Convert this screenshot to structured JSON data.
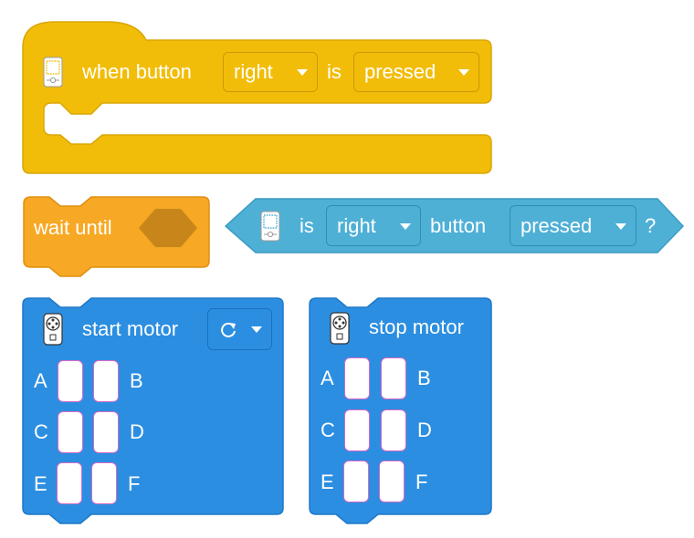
{
  "when_block": {
    "label": "when button",
    "button": "right",
    "is": "is",
    "state": "pressed",
    "color": "#f2bd08"
  },
  "wait_block": {
    "label": "wait until",
    "color": "#f7a824"
  },
  "sensor_block": {
    "is": "is",
    "button": "right",
    "button_word": "button",
    "state": "pressed",
    "question": "?",
    "color": "#4fb0d6"
  },
  "start_motor": {
    "label": "start motor",
    "direction_icon": "rotate-clockwise-icon",
    "ports": [
      "A",
      "B",
      "C",
      "D",
      "E",
      "F"
    ],
    "color": "#2c8ee0"
  },
  "stop_motor": {
    "label": "stop motor",
    "ports": [
      "A",
      "B",
      "C",
      "D",
      "E",
      "F"
    ],
    "color": "#2c8ee0"
  }
}
